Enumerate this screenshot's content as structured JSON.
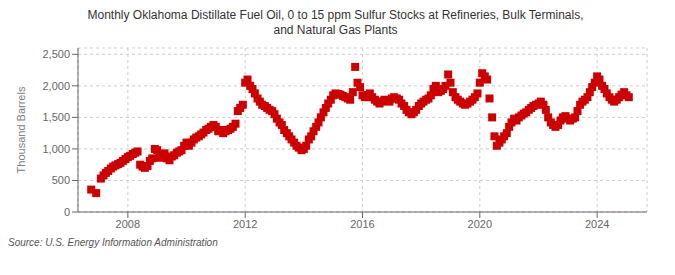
{
  "chart_data": {
    "type": "scatter",
    "title": "Monthly Oklahoma Distillate Fuel Oil, 0 to 15 ppm Sulfur Stocks at Refineries, Bulk Terminals,\nand Natural Gas Plants",
    "ylabel": "Thousand Barrels",
    "annotations": [
      "Source: U.S. Energy Information Administration"
    ],
    "color": "#CC0000",
    "marker": "square",
    "grid": true,
    "xlim": [
      2006.3,
      2025.7
    ],
    "ylim": [
      0,
      2600
    ],
    "xticks": [
      2008,
      2012,
      2016,
      2020,
      2024
    ],
    "yticks": [
      0,
      500,
      {
        "value": 1000,
        "label": "1,000"
      },
      {
        "value": 1500,
        "label": "1,500"
      },
      {
        "value": 2000,
        "label": "2,000"
      },
      {
        "value": 2500,
        "label": "2,500"
      }
    ],
    "x": [
      2006.75,
      2006.92,
      2007.08,
      2007.17,
      2007.25,
      2007.33,
      2007.42,
      2007.5,
      2007.58,
      2007.67,
      2007.75,
      2007.83,
      2007.92,
      2008,
      2008.08,
      2008.17,
      2008.25,
      2008.33,
      2008.42,
      2008.5,
      2008.58,
      2008.67,
      2008.75,
      2008.83,
      2008.92,
      2009,
      2009.08,
      2009.17,
      2009.25,
      2009.33,
      2009.42,
      2009.5,
      2009.58,
      2009.67,
      2009.75,
      2009.83,
      2009.92,
      2010,
      2010.08,
      2010.17,
      2010.25,
      2010.33,
      2010.42,
      2010.5,
      2010.58,
      2010.67,
      2010.75,
      2010.83,
      2010.92,
      2011,
      2011.08,
      2011.17,
      2011.25,
      2011.33,
      2011.42,
      2011.5,
      2011.58,
      2011.67,
      2011.75,
      2011.83,
      2011.92,
      2012,
      2012.08,
      2012.17,
      2012.25,
      2012.33,
      2012.42,
      2012.5,
      2012.58,
      2012.67,
      2012.75,
      2012.83,
      2012.92,
      2013,
      2013.08,
      2013.17,
      2013.25,
      2013.33,
      2013.42,
      2013.5,
      2013.58,
      2013.67,
      2013.75,
      2013.83,
      2013.92,
      2014,
      2014.08,
      2014.17,
      2014.25,
      2014.33,
      2014.42,
      2014.5,
      2014.58,
      2014.67,
      2014.75,
      2014.83,
      2014.92,
      2015,
      2015.08,
      2015.17,
      2015.25,
      2015.33,
      2015.42,
      2015.5,
      2015.58,
      2015.67,
      2015.75,
      2015.83,
      2015.92,
      2016,
      2016.08,
      2016.17,
      2016.25,
      2016.33,
      2016.42,
      2016.5,
      2016.58,
      2016.67,
      2016.75,
      2016.83,
      2016.92,
      2017,
      2017.08,
      2017.17,
      2017.25,
      2017.33,
      2017.42,
      2017.5,
      2017.58,
      2017.67,
      2017.75,
      2017.83,
      2017.92,
      2018,
      2018.08,
      2018.17,
      2018.25,
      2018.33,
      2018.42,
      2018.5,
      2018.58,
      2018.67,
      2018.75,
      2018.83,
      2018.92,
      2019,
      2019.08,
      2019.17,
      2019.25,
      2019.33,
      2019.42,
      2019.5,
      2019.58,
      2019.67,
      2019.75,
      2019.83,
      2019.92,
      2020,
      2020.08,
      2020.17,
      2020.25,
      2020.33,
      2020.42,
      2020.5,
      2020.58,
      2020.67,
      2020.75,
      2020.83,
      2020.92,
      2021,
      2021.08,
      2021.17,
      2021.25,
      2021.33,
      2021.42,
      2021.5,
      2021.58,
      2021.67,
      2021.75,
      2021.83,
      2021.92,
      2022,
      2022.08,
      2022.17,
      2022.25,
      2022.33,
      2022.42,
      2022.5,
      2022.58,
      2022.67,
      2022.75,
      2022.83,
      2022.92,
      2023,
      2023.08,
      2023.17,
      2023.25,
      2023.33,
      2023.42,
      2023.5,
      2023.58,
      2023.67,
      2023.75,
      2023.83,
      2023.92,
      2024,
      2024.08,
      2024.17,
      2024.25,
      2024.33,
      2024.42,
      2024.5,
      2024.58,
      2024.67,
      2024.75,
      2024.83,
      2024.92,
      2025,
      2025.08
    ],
    "values": [
      355,
      300,
      530,
      580,
      620,
      650,
      690,
      720,
      740,
      760,
      780,
      810,
      840,
      870,
      890,
      920,
      940,
      960,
      750,
      720,
      700,
      730,
      810,
      850,
      1000,
      980,
      860,
      900,
      930,
      850,
      820,
      880,
      900,
      940,
      960,
      980,
      1050,
      1100,
      1050,
      1100,
      1150,
      1180,
      1200,
      1230,
      1260,
      1300,
      1320,
      1350,
      1380,
      1350,
      1280,
      1300,
      1250,
      1280,
      1300,
      1320,
      1350,
      1400,
      1600,
      1650,
      1700,
      2050,
      2100,
      2000,
      1950,
      1880,
      1800,
      1750,
      1700,
      1680,
      1650,
      1620,
      1600,
      1550,
      1480,
      1420,
      1380,
      1300,
      1250,
      1200,
      1150,
      1100,
      1050,
      1020,
      980,
      1000,
      1050,
      1150,
      1200,
      1280,
      1350,
      1420,
      1500,
      1580,
      1650,
      1720,
      1780,
      1850,
      1880,
      1870,
      1860,
      1840,
      1820,
      1800,
      1780,
      1900,
      2300,
      2050,
      1980,
      1850,
      1820,
      1850,
      1880,
      1820,
      1780,
      1750,
      1720,
      1750,
      1780,
      1760,
      1750,
      1800,
      1820,
      1800,
      1780,
      1720,
      1680,
      1620,
      1580,
      1550,
      1580,
      1620,
      1680,
      1720,
      1750,
      1780,
      1800,
      1850,
      1950,
      2000,
      1900,
      1920,
      1950,
      2000,
      2180,
      2050,
      1900,
      1820,
      1780,
      1750,
      1720,
      1700,
      1720,
      1750,
      1780,
      1820,
      1880,
      2050,
      2200,
      2150,
      2100,
      1800,
      1500,
      1200,
      1050,
      1100,
      1150,
      1200,
      1250,
      1350,
      1420,
      1480,
      1450,
      1500,
      1530,
      1560,
      1580,
      1620,
      1650,
      1680,
      1700,
      1720,
      1750,
      1700,
      1620,
      1500,
      1420,
      1380,
      1350,
      1380,
      1450,
      1500,
      1520,
      1480,
      1450,
      1480,
      1500,
      1600,
      1700,
      1750,
      1780,
      1820,
      1900,
      1980,
      2050,
      2150,
      2100,
      2000,
      1950,
      1880,
      1820,
      1780,
      1750,
      1780,
      1820,
      1860,
      1900,
      1850,
      1820
    ]
  }
}
